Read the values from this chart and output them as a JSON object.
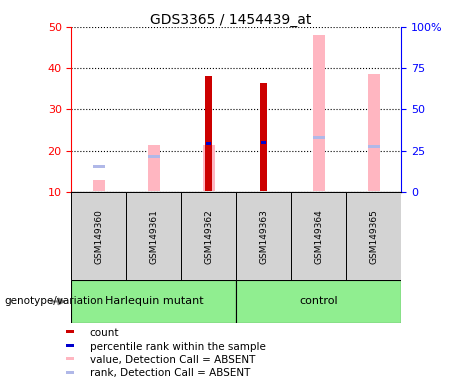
{
  "title": "GDS3365 / 1454439_at",
  "samples": [
    "GSM149360",
    "GSM149361",
    "GSM149362",
    "GSM149363",
    "GSM149364",
    "GSM149365"
  ],
  "ylim_left": [
    10,
    50
  ],
  "ylim_right": [
    0,
    100
  ],
  "yticks_left": [
    10,
    20,
    30,
    40,
    50
  ],
  "yticks_right": [
    0,
    25,
    50,
    75,
    100
  ],
  "yticklabels_right": [
    "0",
    "25",
    "50",
    "75",
    "100%"
  ],
  "count_color": "#CC0000",
  "rank_color": "#0000CC",
  "absent_value_color": "#FFB6C1",
  "absent_rank_color": "#B0B8E8",
  "count_values": [
    null,
    null,
    38.0,
    36.5,
    null,
    null
  ],
  "count_bottom": [
    null,
    null,
    10.3,
    10.3,
    null,
    null
  ],
  "rank_values": [
    null,
    null,
    22.0,
    22.3,
    null,
    null
  ],
  "rank_bottom": [
    null,
    null,
    21.4,
    21.7,
    null,
    null
  ],
  "absent_value_values": [
    13.0,
    21.5,
    21.5,
    null,
    48.0,
    38.5
  ],
  "absent_value_bottom": [
    10.3,
    10.3,
    10.3,
    null,
    10.3,
    10.3
  ],
  "absent_rank_values": [
    16.5,
    19.0,
    null,
    null,
    23.5,
    21.3
  ],
  "absent_rank_bottom": [
    15.8,
    18.3,
    null,
    null,
    22.8,
    20.6
  ],
  "harlequin_samples": [
    0,
    1,
    2
  ],
  "control_samples": [
    3,
    4,
    5
  ],
  "legend_items": [
    {
      "color": "#CC0000",
      "label": "count"
    },
    {
      "color": "#0000CC",
      "label": "percentile rank within the sample"
    },
    {
      "color": "#FFB6C1",
      "label": "value, Detection Call = ABSENT"
    },
    {
      "color": "#B0B8E8",
      "label": "rank, Detection Call = ABSENT"
    }
  ]
}
